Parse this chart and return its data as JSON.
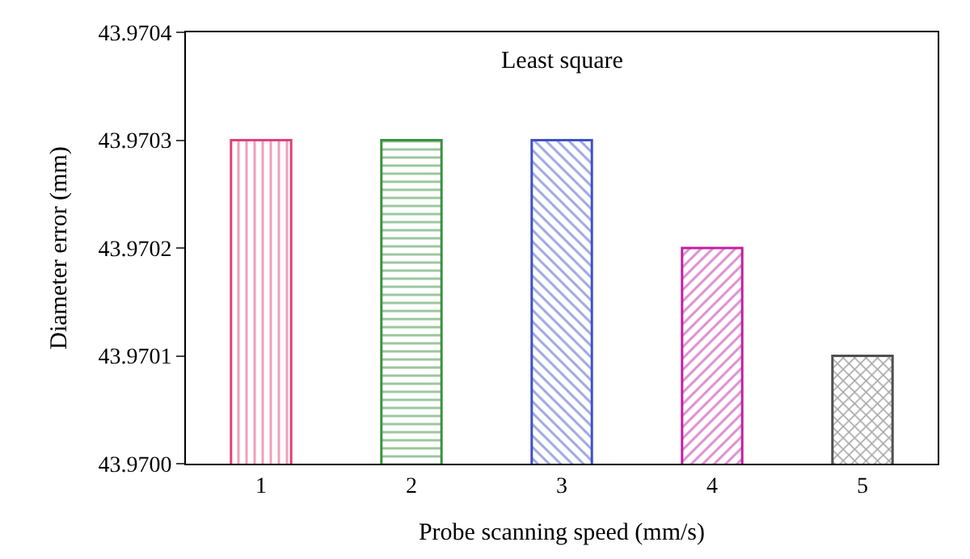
{
  "chart_data": {
    "type": "bar",
    "title": "Least square",
    "xlabel": "Probe scanning speed (mm/s)",
    "ylabel": "Diameter error (mm)",
    "categories": [
      "1",
      "2",
      "3",
      "4",
      "5"
    ],
    "values": [
      43.9703,
      43.9703,
      43.9703,
      43.9702,
      43.9701
    ],
    "colors": [
      "#e0407a",
      "#3a9040",
      "#4050c8",
      "#c020a0",
      "#505050"
    ],
    "ylim": [
      43.97,
      43.9704
    ],
    "yticks": [
      {
        "value": 43.97,
        "label": "43.9700"
      },
      {
        "value": 43.9701,
        "label": "43.9701"
      },
      {
        "value": 43.9702,
        "label": "43.9702"
      },
      {
        "value": 43.9703,
        "label": "43.9703"
      },
      {
        "value": 43.9704,
        "label": "43.9704"
      }
    ],
    "legend": false
  }
}
